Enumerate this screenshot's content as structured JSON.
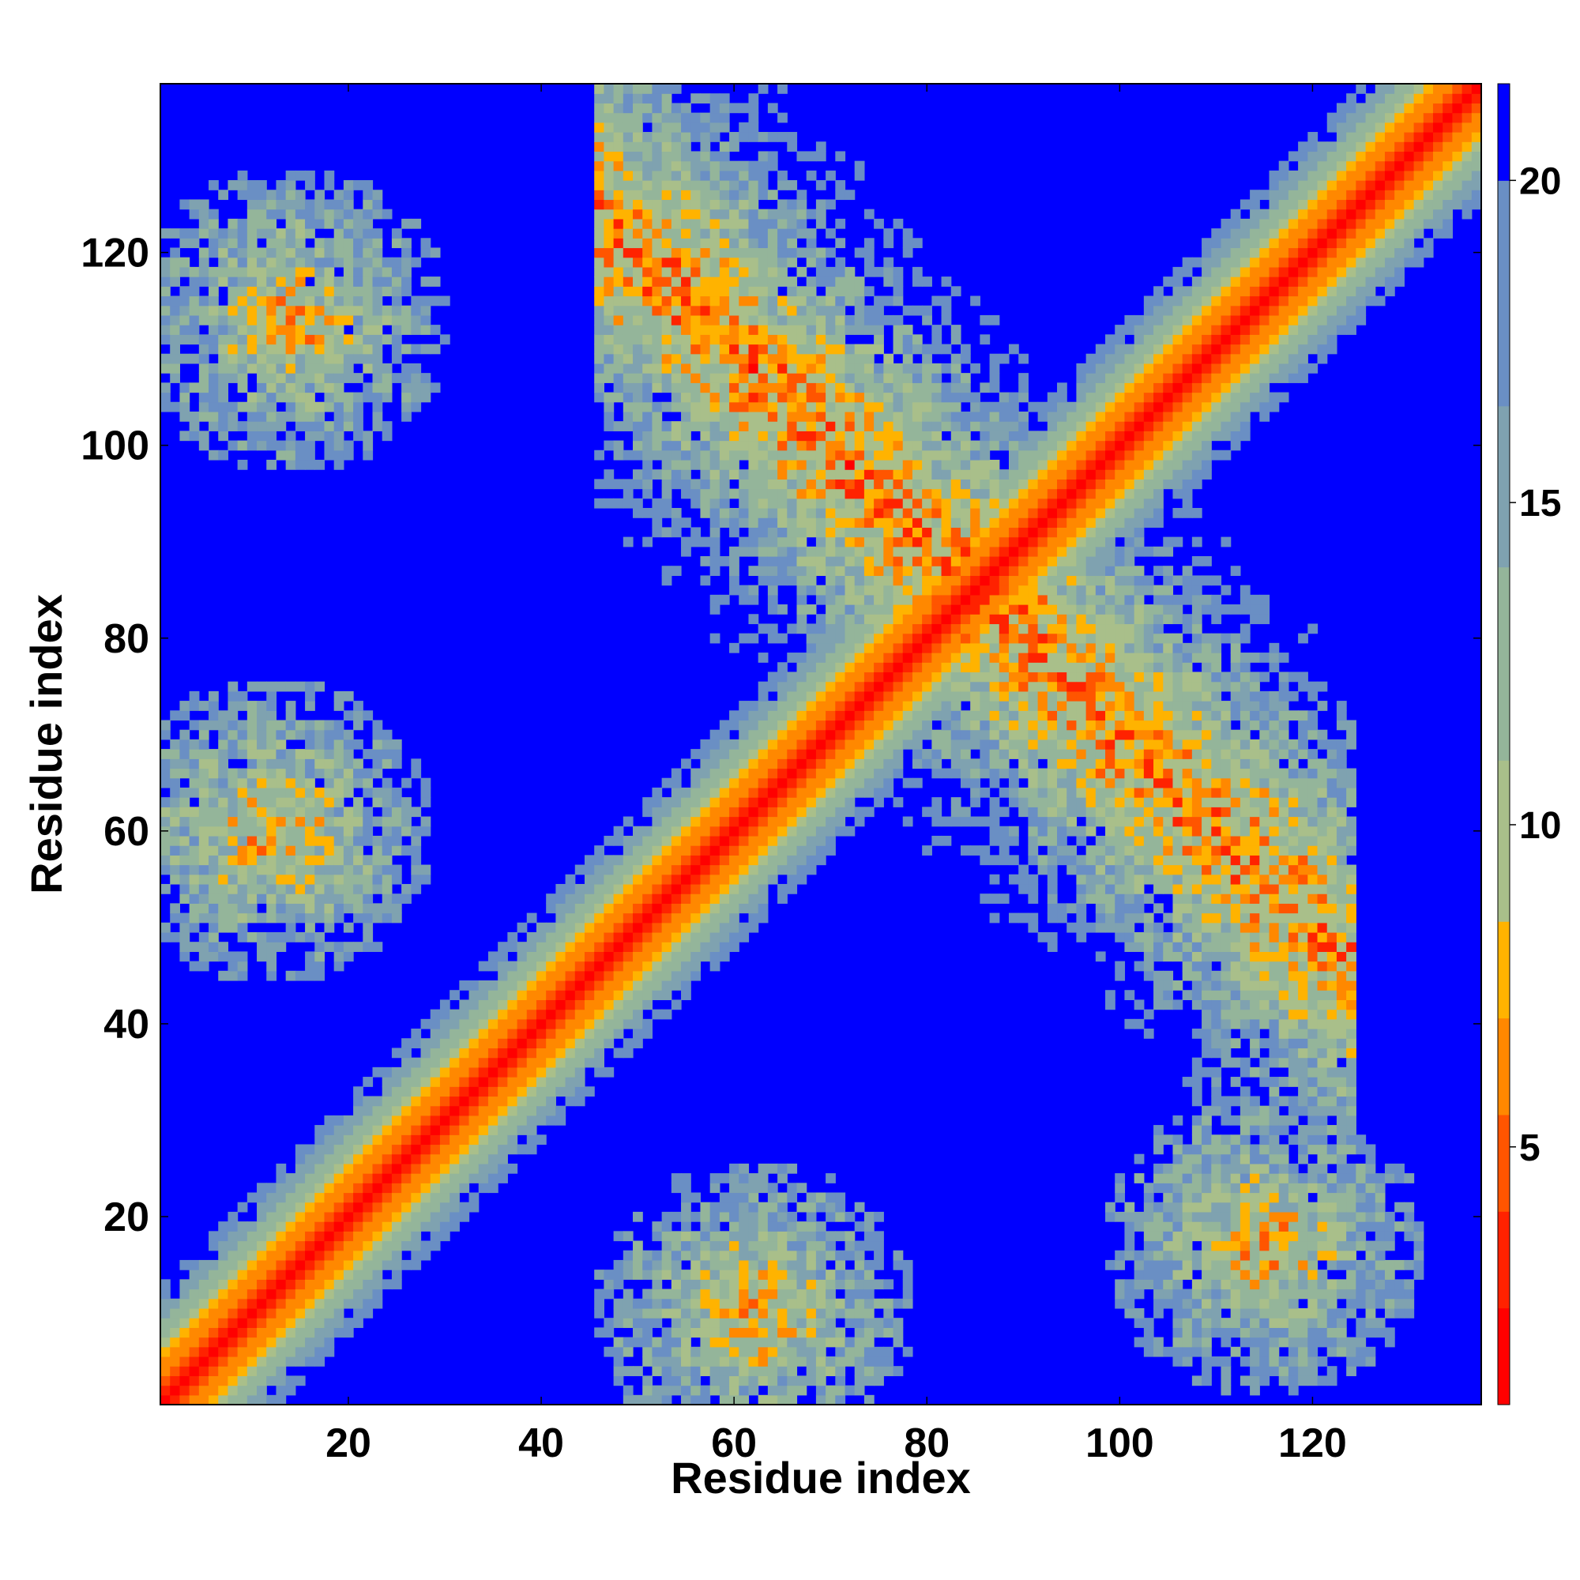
{
  "chart_data": {
    "type": "heatmap",
    "description_free": true,
    "xlabel": "Residue index",
    "ylabel": "Residue index",
    "x_range": [
      1,
      137
    ],
    "y_range": [
      1,
      137
    ],
    "x_ticks": [
      20,
      40,
      60,
      80,
      100,
      120
    ],
    "y_ticks": [
      20,
      40,
      60,
      80,
      100,
      120
    ],
    "colorbar": {
      "range": [
        1,
        21.5
      ],
      "ticks": [
        5,
        10,
        15,
        20
      ],
      "levels": [
        {
          "upper": 2.5,
          "color": "#ff0000"
        },
        {
          "upper": 4.0,
          "color": "#ff2200"
        },
        {
          "upper": 5.5,
          "color": "#ff5500"
        },
        {
          "upper": 7.0,
          "color": "#ff8800"
        },
        {
          "upper": 8.5,
          "color": "#ffb300"
        },
        {
          "upper": 11.0,
          "color": "#a9bf8a"
        },
        {
          "upper": 14.0,
          "color": "#94b59a"
        },
        {
          "upper": 16.5,
          "color": "#7fa2b0"
        },
        {
          "upper": 20.0,
          "color": "#6a8fc4"
        },
        {
          "upper": 21.5,
          "color": "#0000ff"
        }
      ],
      "background_color": "#0000ff"
    },
    "structure": {
      "diagonal_band": {
        "axis": "main",
        "note": "distance grows with |i-j|"
      },
      "antidiagonal_band": {
        "center_sum": 170
      },
      "off_diagonal_clusters": [
        {
          "x_center": 14,
          "y_center": 113
        },
        {
          "x_center": 12,
          "y_center": 60
        },
        {
          "x_center": 62,
          "y_center": 10
        },
        {
          "x_center": 115,
          "y_center": 17
        }
      ]
    }
  }
}
